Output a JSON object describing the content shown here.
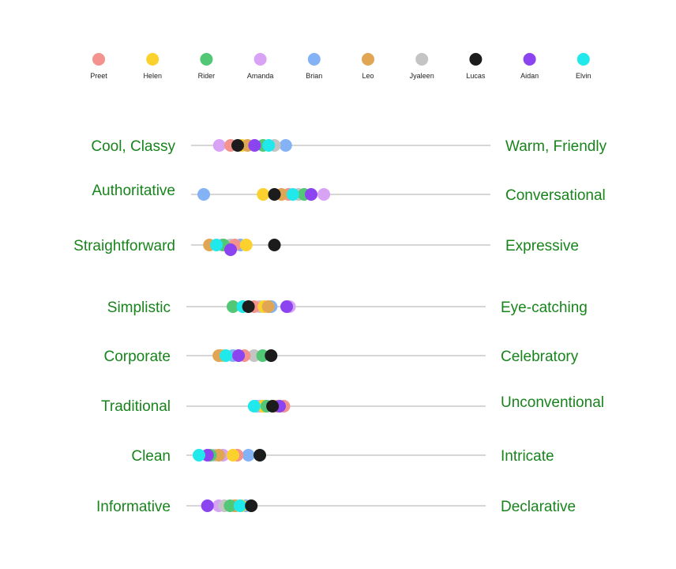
{
  "chart_data": {
    "type": "scatter",
    "subtype": "semantic-differential dot plot",
    "legend_position": "top",
    "grid": false,
    "x_range": [
      0,
      100
    ],
    "people": [
      {
        "name": "Preet",
        "color": "#f4928d"
      },
      {
        "name": "Helen",
        "color": "#fbd12e"
      },
      {
        "name": "Rider",
        "color": "#52c776"
      },
      {
        "name": "Amanda",
        "color": "#d9a3f5"
      },
      {
        "name": "Brian",
        "color": "#84b3f5"
      },
      {
        "name": "Leo",
        "color": "#e0a653"
      },
      {
        "name": "Jyaleen",
        "color": "#c4c4c4"
      },
      {
        "name": "Lucas",
        "color": "#1c1c1c"
      },
      {
        "name": "Aidan",
        "color": "#8b44f0"
      },
      {
        "name": "Elvin",
        "color": "#21e8ea"
      }
    ],
    "scales": [
      {
        "left": "Cool, Classy",
        "right": "Warm, Friendly",
        "values": {
          "Preet": 19,
          "Helen": 27,
          "Rider": 42,
          "Amanda": 11,
          "Brian": 58,
          "Leo": 31,
          "Jyaleen": 50,
          "Lucas": 24,
          "Aidan": 36,
          "Elvin": 46
        }
      },
      {
        "left": "Authoritative",
        "right": "Conversational",
        "values": {
          "Preet": 60,
          "Helen": 42,
          "Rider": 71,
          "Amanda": 85,
          "Brian": 0,
          "Leo": 55,
          "Jyaleen": 67,
          "Lucas": 50,
          "Aidan": 76,
          "Elvin": 63
        }
      },
      {
        "left": "Straightforward",
        "right": "Expressive",
        "values": {
          "Preet": 22,
          "Helen": 30,
          "Rider": 14,
          "Amanda": 13,
          "Brian": 26,
          "Leo": 4,
          "Jyaleen": 19,
          "Lucas": 50,
          "Aidan": 19,
          "Elvin": 9
        }
      },
      {
        "left": "Simplistic",
        "right": "Eye-catching",
        "values": {
          "Preet": 39,
          "Helen": 46,
          "Rider": 24,
          "Amanda": 64,
          "Brian": 51,
          "Leo": 49,
          "Jyaleen": 43,
          "Lucas": 35,
          "Aidan": 62,
          "Elvin": 31
        }
      },
      {
        "left": "Corporate",
        "right": "Celebratory",
        "values": {
          "Preet": 32,
          "Helen": 17,
          "Rider": 45,
          "Amanda": 16,
          "Brian": 24,
          "Leo": 14,
          "Jyaleen": 39,
          "Lucas": 51,
          "Aidan": 28,
          "Elvin": 19
        }
      },
      {
        "left": "Traditional",
        "right": "Unconventional",
        "values": {
          "Preet": 60,
          "Helen": 45,
          "Rider": 48,
          "Amanda": 43,
          "Brian": 41,
          "Leo": 55,
          "Jyaleen": 47,
          "Lucas": 52,
          "Aidan": 57,
          "Elvin": 39
        }
      },
      {
        "left": "Clean",
        "right": "Intricate",
        "values": {
          "Preet": 27,
          "Helen": 24,
          "Rider": 8,
          "Amanda": 17,
          "Brian": 35,
          "Leo": 14,
          "Jyaleen": 11,
          "Lucas": 43,
          "Aidan": 6,
          "Elvin": 0
        }
      },
      {
        "left": "Informative",
        "right": "Declarative",
        "values": {
          "Preet": 25,
          "Helen": 30,
          "Rider": 22,
          "Amanda": 14,
          "Brian": 33,
          "Leo": 26,
          "Jyaleen": 18,
          "Lucas": 37,
          "Aidan": 6,
          "Elvin": 29
        }
      }
    ]
  }
}
